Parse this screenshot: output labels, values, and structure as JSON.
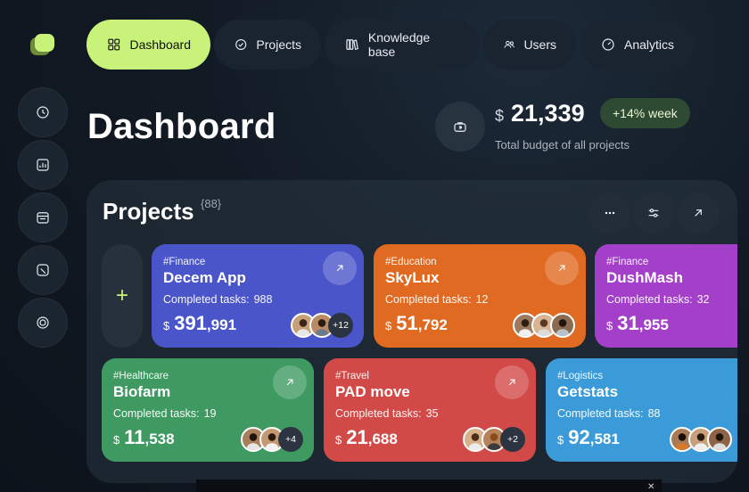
{
  "nav": {
    "tabs": [
      {
        "label": "Dashboard",
        "icon": "grid-icon",
        "active": true
      },
      {
        "label": "Projects",
        "icon": "check-circle-icon",
        "active": false
      },
      {
        "label": "Knowledge base",
        "icon": "books-icon",
        "active": false
      },
      {
        "label": "Users",
        "icon": "users-icon",
        "active": false
      },
      {
        "label": "Analytics",
        "icon": "gauge-icon",
        "active": false
      }
    ]
  },
  "sidebar": {
    "items": [
      {
        "icon": "clock-icon"
      },
      {
        "icon": "chart-icon"
      },
      {
        "icon": "calendar-icon"
      },
      {
        "icon": "box-icon"
      },
      {
        "icon": "rings-icon"
      }
    ]
  },
  "header": {
    "title": "Dashboard",
    "budget_currency": "$",
    "budget_value": "21,339",
    "budget_change": "+14% week",
    "budget_label": "Total budget of all projects"
  },
  "projects": {
    "title": "Projects",
    "count": "{88}",
    "add_label": "+",
    "cards": [
      {
        "tag": "#Finance",
        "name": "Decem App",
        "tasks_label": "Completed tasks:",
        "tasks": "988",
        "currency": "$",
        "amount_main": "391",
        "amount_rest": ",991",
        "more": "+12",
        "color": "#4a55c9"
      },
      {
        "tag": "#Education",
        "name": "SkyLux",
        "tasks_label": "Completed tasks:",
        "tasks": "12",
        "currency": "$",
        "amount_main": "51",
        "amount_rest": ",792",
        "more": "",
        "color": "#e06a22"
      },
      {
        "tag": "#Finance",
        "name": "DushMash",
        "tasks_label": "Completed tasks:",
        "tasks": "32",
        "currency": "$",
        "amount_main": "31",
        "amount_rest": ",955",
        "more": "",
        "color": "#a43fc9"
      },
      {
        "tag": "#Healthcare",
        "name": "Biofarm",
        "tasks_label": "Completed tasks:",
        "tasks": "19",
        "currency": "$",
        "amount_main": "11",
        "amount_rest": ",538",
        "more": "+4",
        "color": "#3f9a62"
      },
      {
        "tag": "#Travel",
        "name": "PAD move",
        "tasks_label": "Completed tasks:",
        "tasks": "35",
        "currency": "$",
        "amount_main": "21",
        "amount_rest": ",688",
        "more": "+2",
        "color": "#d24a48"
      },
      {
        "tag": "#Logistics",
        "name": "Getstats",
        "tasks_label": "Completed tasks:",
        "tasks": "88",
        "currency": "$",
        "amount_main": "92",
        "amount_rest": ",581",
        "more": "",
        "color": "#3b9bd8"
      }
    ]
  },
  "colors": {
    "accent": "#c9f27a",
    "background": "#121a24"
  }
}
